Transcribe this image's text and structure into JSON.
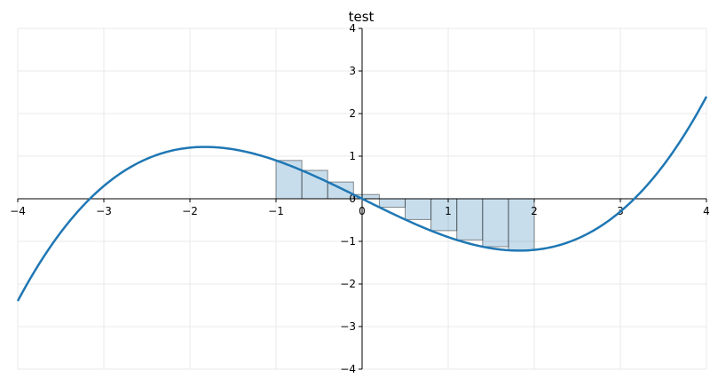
{
  "chart_data": {
    "type": "line",
    "title": "test",
    "xlabel": "",
    "ylabel": "",
    "xlim": [
      -4,
      4
    ],
    "ylim": [
      -4,
      4
    ],
    "grid": true,
    "x_ticks": [
      -4,
      -3,
      -2,
      -1,
      0,
      1,
      2,
      3,
      4
    ],
    "y_ticks": [
      -4,
      -3,
      -2,
      -1,
      0,
      1,
      2,
      3,
      4
    ],
    "x_tick_labels": [
      "−4",
      "−3",
      "−2",
      "−1",
      "0",
      "1",
      "2",
      "3",
      "4"
    ],
    "y_tick_labels": [
      "−4",
      "−3",
      "−2",
      "−1",
      "0",
      "1",
      "2",
      "3",
      "4"
    ],
    "series": [
      {
        "function": "y = (x^3 - 10x) / 10",
        "x": [
          -4,
          -3.5,
          -3,
          -2.5,
          -2,
          -1.5,
          -1,
          -0.5,
          0,
          0.5,
          1,
          1.5,
          2,
          2.5,
          3,
          3.5,
          4
        ],
        "y": [
          -2.4,
          -0.79,
          0.3,
          0.94,
          1.2,
          1.16,
          0.9,
          0.49,
          0,
          -0.49,
          -0.9,
          -1.16,
          -1.2,
          -0.94,
          -0.3,
          0.79,
          2.4
        ],
        "color": "#1f77b4"
      }
    ],
    "riemann_rectangles": {
      "interval": [
        -1,
        2
      ],
      "count": 10,
      "width": 0.3,
      "rule": "left",
      "x": [
        -1,
        -0.7,
        -0.4,
        -0.1,
        0.2,
        0.5,
        0.8,
        1.1,
        1.4,
        1.7
      ],
      "heights": [
        0.9,
        0.666,
        0.394,
        0.0999,
        -0.1992,
        -0.4875,
        -0.7488,
        -0.9669,
        -1.1256,
        -1.2087
      ],
      "fill_color": "#1f77b4",
      "fill_opacity": 0.25
    },
    "colors": {
      "curve": "#1f77b4",
      "grid": "#e8e8e8",
      "axis": "#000000"
    }
  }
}
